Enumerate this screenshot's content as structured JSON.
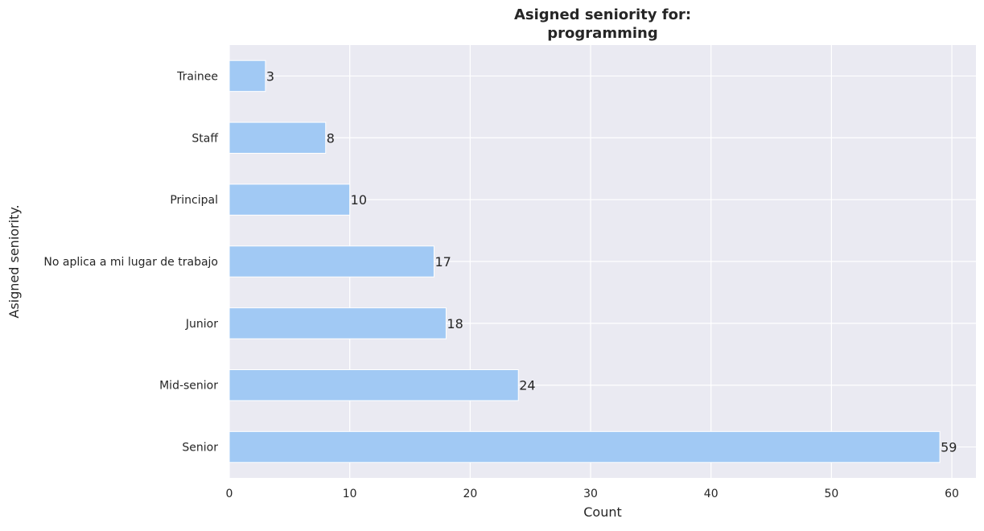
{
  "chart_data": {
    "type": "bar",
    "orientation": "horizontal",
    "title_lines": [
      "Asigned seniority for:",
      "programming"
    ],
    "xlabel": "Count",
    "ylabel": "Asigned seniority.",
    "categories": [
      "Trainee",
      "Staff",
      "Principal",
      "No aplica a mi lugar de trabajo",
      "Junior",
      "Mid-senior",
      "Senior"
    ],
    "values": [
      3,
      8,
      10,
      17,
      18,
      24,
      59
    ],
    "xlim": [
      0,
      62
    ],
    "xticks": [
      0,
      10,
      20,
      30,
      40,
      50,
      60
    ],
    "grid": true,
    "colors": {
      "bar": "#a1c9f4",
      "plot_bg": "#eaeaf2",
      "grid": "#ffffff",
      "text": "#262626"
    }
  }
}
